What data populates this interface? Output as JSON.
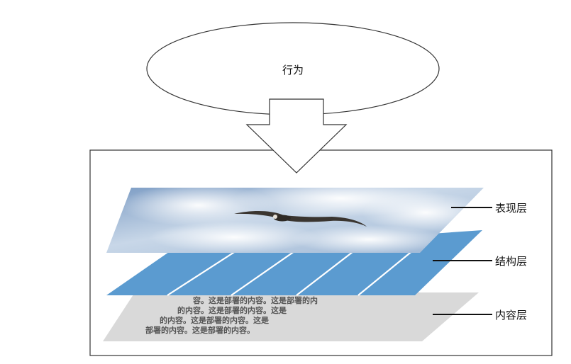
{
  "behavior": {
    "label": "行为"
  },
  "layers": [
    {
      "label": "表现层",
      "color": "#9fb8d6"
    },
    {
      "label": "结构层",
      "color": "#5b9bd0"
    },
    {
      "label": "内容层",
      "color": "#d9d9d9"
    }
  ],
  "content_text": [
    "容。这是部署的内容。这是部署的内",
    "的内容。这是部署的内容。这是",
    "的内容。这是部署的内容。这是",
    "部署的内容。这是部署的内容。"
  ]
}
